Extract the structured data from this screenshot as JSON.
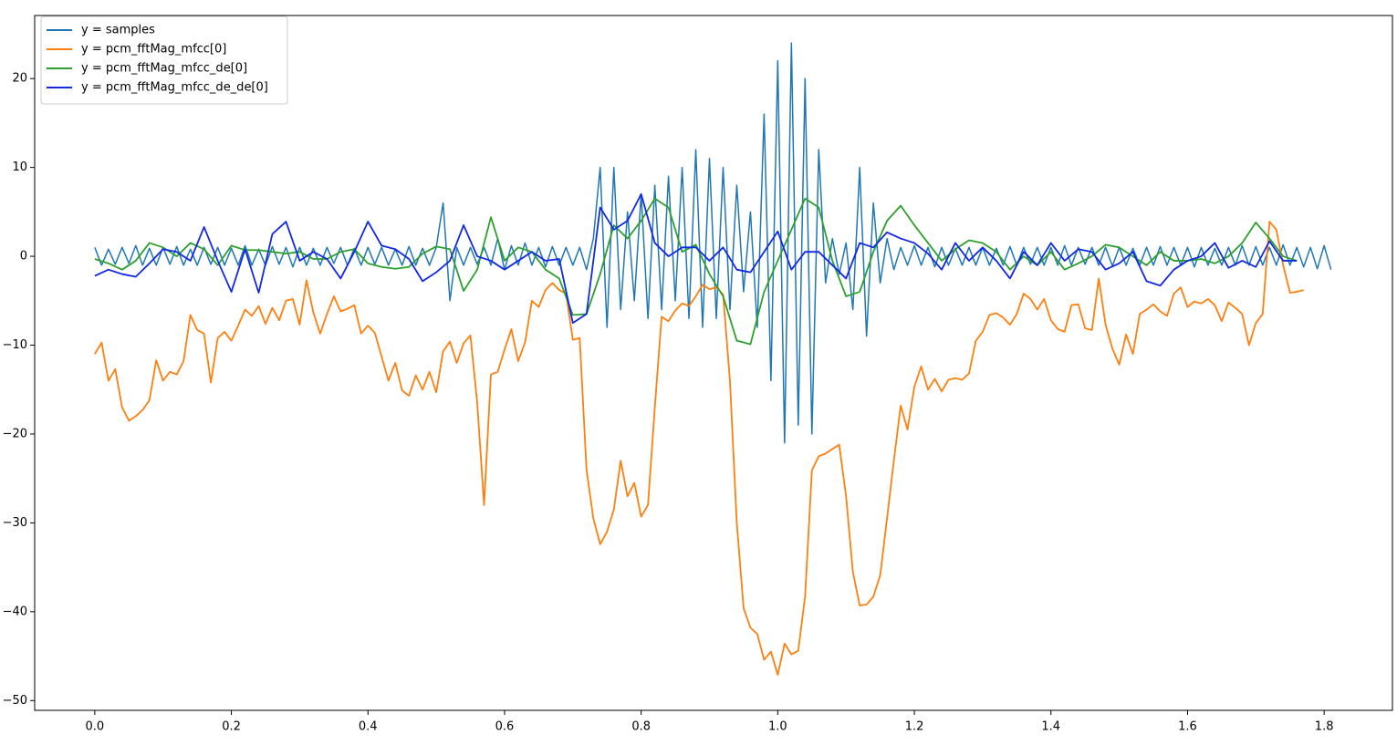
{
  "chart_data": {
    "type": "line",
    "xlim": [
      -0.088,
      1.9
    ],
    "ylim": [
      -51.1,
      27.1
    ],
    "xticks": [
      {
        "value": 0,
        "label": "0.0"
      },
      {
        "value": 0.2,
        "label": "0.2"
      },
      {
        "value": 0.4,
        "label": "0.4"
      },
      {
        "value": 0.6,
        "label": "0.6"
      },
      {
        "value": 0.8,
        "label": "0.8"
      },
      {
        "value": 1.0,
        "label": "1.0"
      },
      {
        "value": 1.2,
        "label": "1.2"
      },
      {
        "value": 1.4,
        "label": "1.4"
      },
      {
        "value": 1.6,
        "label": "1.6"
      },
      {
        "value": 1.8,
        "label": "1.8"
      }
    ],
    "yticks": [
      {
        "value": -50,
        "label": "−50"
      },
      {
        "value": -40,
        "label": "−40"
      },
      {
        "value": -30,
        "label": "−30"
      },
      {
        "value": -20,
        "label": "−20"
      },
      {
        "value": -10,
        "label": "−10"
      },
      0,
      10,
      20
    ],
    "legend": "upper left",
    "series": [
      {
        "name": "y = samples",
        "color": "#1f77b4",
        "x": [
          0,
          0.01,
          0.02,
          0.03,
          0.04,
          0.05,
          0.06,
          0.07,
          0.08,
          0.09,
          0.1,
          0.11,
          0.12,
          0.13,
          0.14,
          0.15,
          0.16,
          0.17,
          0.18,
          0.19,
          0.2,
          0.21,
          0.22,
          0.23,
          0.24,
          0.25,
          0.26,
          0.27,
          0.28,
          0.29,
          0.3,
          0.31,
          0.32,
          0.33,
          0.34,
          0.35,
          0.36,
          0.37,
          0.38,
          0.39,
          0.4,
          0.41,
          0.42,
          0.43,
          0.44,
          0.45,
          0.46,
          0.47,
          0.48,
          0.49,
          0.5,
          0.51,
          0.52,
          0.53,
          0.54,
          0.55,
          0.56,
          0.57,
          0.58,
          0.59,
          0.6,
          0.61,
          0.62,
          0.63,
          0.64,
          0.65,
          0.66,
          0.67,
          0.68,
          0.69,
          0.7,
          0.71,
          0.72,
          0.73,
          0.74,
          0.75,
          0.76,
          0.77,
          0.78,
          0.79,
          0.8,
          0.81,
          0.82,
          0.83,
          0.84,
          0.85,
          0.86,
          0.87,
          0.88,
          0.89,
          0.9,
          0.91,
          0.92,
          0.93,
          0.94,
          0.95,
          0.96,
          0.97,
          0.98,
          0.99,
          1.0,
          1.01,
          1.02,
          1.03,
          1.04,
          1.05,
          1.06,
          1.07,
          1.08,
          1.09,
          1.1,
          1.11,
          1.12,
          1.13,
          1.14,
          1.15,
          1.16,
          1.17,
          1.18,
          1.19,
          1.2,
          1.21,
          1.22,
          1.23,
          1.24,
          1.25,
          1.26,
          1.27,
          1.28,
          1.29,
          1.3,
          1.31,
          1.32,
          1.33,
          1.34,
          1.35,
          1.36,
          1.37,
          1.38,
          1.39,
          1.4,
          1.41,
          1.42,
          1.43,
          1.44,
          1.45,
          1.46,
          1.47,
          1.48,
          1.49,
          1.5,
          1.51,
          1.52,
          1.53,
          1.54,
          1.55,
          1.56,
          1.57,
          1.58,
          1.59,
          1.6,
          1.61,
          1.62,
          1.63,
          1.64,
          1.65,
          1.66,
          1.67,
          1.68,
          1.69,
          1.7,
          1.71,
          1.72,
          1.73,
          1.74,
          1.75,
          1.76,
          1.77,
          1.78,
          1.79,
          1.8,
          1.81
        ],
        "values": [
          1,
          -1,
          0.8,
          -0.9,
          1,
          -0.8,
          1.2,
          -1,
          0.9,
          -1,
          1,
          -0.9,
          1.1,
          -1,
          0.8,
          -1,
          1,
          -0.9,
          1,
          -1,
          0.9,
          -1,
          1.2,
          -1,
          0.8,
          -1,
          1.1,
          -0.9,
          1,
          -1.2,
          1,
          -1,
          0.9,
          -1,
          1,
          -0.8,
          1,
          -1,
          0.9,
          -1,
          1,
          -0.9,
          1,
          -1,
          0.8,
          -1,
          1.1,
          -1,
          0.9,
          -1,
          1,
          6,
          -5,
          1,
          -1,
          1,
          -0.9,
          1,
          -1,
          2,
          -1.5,
          1.2,
          -1,
          1.5,
          -1,
          1,
          -1.2,
          1.1,
          -1,
          1,
          -1,
          1,
          -1.5,
          2,
          10,
          -8,
          10,
          -6,
          5,
          -5,
          7,
          -7,
          8,
          -6,
          9,
          -5,
          10,
          -7,
          12,
          -8,
          11,
          -7,
          10,
          -6,
          8,
          -4,
          5,
          -8,
          16,
          -14,
          22,
          -21,
          24,
          -19,
          20,
          -20,
          12,
          -3,
          2,
          -2,
          1.5,
          -6,
          10,
          -9,
          6,
          -3,
          2,
          -1.5,
          1,
          -1,
          1.2,
          -1,
          1,
          -1.2,
          1,
          -1,
          0.9,
          -1,
          1,
          -1,
          1,
          -1,
          0.9,
          -1,
          1.1,
          -1,
          1,
          -0.9,
          1,
          -1,
          1,
          -1,
          1.2,
          -1,
          1,
          -0.9,
          1,
          -1,
          1,
          -1.1,
          1,
          -1,
          0.9,
          -1,
          1,
          -1,
          1.1,
          -1,
          1,
          -1,
          1,
          -1.2,
          1,
          -1,
          0.9,
          -1,
          1,
          -1,
          1.2,
          -1,
          1.1,
          -1,
          1,
          -1,
          1.3,
          -1,
          1,
          -1.2,
          1,
          -1.4,
          1.2,
          -1.5
        ]
      },
      {
        "name": "y = pcm_fftMag_mfcc[0]",
        "color": "#ff7f0e",
        "x": [
          0,
          0.01,
          0.02,
          0.03,
          0.04,
          0.05,
          0.06,
          0.07,
          0.08,
          0.09,
          0.1,
          0.11,
          0.12,
          0.13,
          0.14,
          0.15,
          0.16,
          0.17,
          0.18,
          0.19,
          0.2,
          0.21,
          0.22,
          0.23,
          0.24,
          0.25,
          0.26,
          0.27,
          0.28,
          0.29,
          0.3,
          0.31,
          0.32,
          0.33,
          0.34,
          0.35,
          0.36,
          0.37,
          0.38,
          0.39,
          0.4,
          0.41,
          0.42,
          0.43,
          0.44,
          0.45,
          0.46,
          0.47,
          0.48,
          0.49,
          0.5,
          0.51,
          0.52,
          0.53,
          0.54,
          0.55,
          0.56,
          0.57,
          0.58,
          0.59,
          0.6,
          0.61,
          0.62,
          0.63,
          0.64,
          0.65,
          0.66,
          0.67,
          0.68,
          0.69,
          0.7,
          0.71,
          0.72,
          0.73,
          0.74,
          0.75,
          0.76,
          0.77,
          0.78,
          0.79,
          0.8,
          0.81,
          0.82,
          0.83,
          0.84,
          0.85,
          0.86,
          0.87,
          0.88,
          0.89,
          0.9,
          0.91,
          0.92,
          0.93,
          0.94,
          0.95,
          0.96,
          0.97,
          0.98,
          0.99,
          1.0,
          1.01,
          1.02,
          1.03,
          1.04,
          1.05,
          1.06,
          1.07,
          1.08,
          1.09,
          1.1,
          1.11,
          1.12,
          1.13,
          1.14,
          1.15,
          1.16,
          1.17,
          1.18,
          1.19,
          1.2,
          1.21,
          1.22,
          1.23,
          1.24,
          1.25,
          1.26,
          1.27,
          1.28,
          1.29,
          1.3,
          1.31,
          1.32,
          1.33,
          1.34,
          1.35,
          1.36,
          1.37,
          1.38,
          1.39,
          1.4,
          1.41,
          1.42,
          1.43,
          1.44,
          1.45,
          1.46,
          1.47,
          1.48,
          1.49,
          1.5,
          1.51,
          1.52,
          1.53,
          1.54,
          1.55,
          1.56,
          1.57,
          1.58,
          1.59,
          1.6,
          1.61,
          1.62,
          1.63,
          1.64,
          1.65,
          1.66,
          1.67,
          1.68,
          1.69,
          1.7,
          1.71,
          1.72,
          1.73,
          1.74,
          1.75,
          1.76,
          1.77
        ],
        "values": [
          -11,
          -9.7,
          -14,
          -12.7,
          -17,
          -18.5,
          -18,
          -17.3,
          -16.2,
          -11.7,
          -14,
          -13,
          -13.3,
          -11.8,
          -6.6,
          -8.3,
          -8.7,
          -14.2,
          -9.2,
          -8.5,
          -9.5,
          -7.8,
          -6,
          -6.7,
          -5.6,
          -7.6,
          -5.8,
          -7.2,
          -5,
          -4.8,
          -7.7,
          -2.7,
          -6.3,
          -8.7,
          -6.5,
          -4.5,
          -6.2,
          -5.9,
          -5.5,
          -8.7,
          -7.8,
          -8.6,
          -11.3,
          -14,
          -12,
          -15.1,
          -15.7,
          -13.4,
          -15,
          -13,
          -15.3,
          -10.7,
          -9.6,
          -12,
          -9.8,
          -8.9,
          -16.5,
          -28,
          -13.3,
          -13,
          -10.5,
          -8.2,
          -11.8,
          -9.7,
          -5,
          -5.7,
          -3.8,
          -3,
          -3.8,
          -4.2,
          -9.4,
          -9.2,
          -24,
          -29.5,
          -32.4,
          -31,
          -28.5,
          -23,
          -27,
          -25.5,
          -29.3,
          -28,
          -17,
          -6.8,
          -7.3,
          -6.1,
          -5.3,
          -5.6,
          -4.5,
          -3.2,
          -3.7,
          -3.5,
          -4.3,
          -14,
          -30,
          -39.6,
          -41.8,
          -42.5,
          -45.4,
          -44.5,
          -47.1,
          -43.6,
          -44.8,
          -44.4,
          -38.3,
          -24.1,
          -22.5,
          -22.2,
          -21.7,
          -21.2,
          -27,
          -35.5,
          -39.3,
          -39.2,
          -38.3,
          -35.9,
          -29.5,
          -23,
          -16.8,
          -19.5,
          -14.7,
          -12.4,
          -15,
          -13.8,
          -15.2,
          -13.9,
          -13.7,
          -13.9,
          -13.2,
          -9.5,
          -8.5,
          -6.6,
          -6.4,
          -6.9,
          -7.7,
          -6.5,
          -4.2,
          -4.8,
          -6,
          -4.8,
          -7.2,
          -8.2,
          -8.5,
          -5.5,
          -5.4,
          -8.1,
          -8.3,
          -2.5,
          -7.7,
          -10.4,
          -12.2,
          -8.8,
          -11,
          -6.5,
          -6,
          -5.4,
          -6.2,
          -6.7,
          -4.2,
          -3.5,
          -5.7,
          -5.1,
          -5.3,
          -4.8,
          -5.5,
          -7.3,
          -5.2,
          -5.8,
          -6.5,
          -10,
          -7.5,
          -6.5,
          3.9,
          3,
          -1,
          -4.1,
          -4,
          -3.8
        ]
      },
      {
        "name": "y = pcm_fftMag_mfcc_de[0]",
        "color": "#2ca02c",
        "x": [
          0,
          0.02,
          0.04,
          0.06,
          0.08,
          0.1,
          0.12,
          0.14,
          0.16,
          0.18,
          0.2,
          0.22,
          0.24,
          0.26,
          0.28,
          0.3,
          0.32,
          0.34,
          0.36,
          0.38,
          0.4,
          0.42,
          0.44,
          0.46,
          0.48,
          0.5,
          0.52,
          0.54,
          0.56,
          0.58,
          0.6,
          0.62,
          0.64,
          0.66,
          0.68,
          0.7,
          0.72,
          0.74,
          0.76,
          0.78,
          0.8,
          0.82,
          0.84,
          0.86,
          0.88,
          0.9,
          0.92,
          0.94,
          0.96,
          0.98,
          1.0,
          1.02,
          1.04,
          1.06,
          1.08,
          1.1,
          1.12,
          1.14,
          1.16,
          1.18,
          1.2,
          1.22,
          1.24,
          1.26,
          1.28,
          1.3,
          1.32,
          1.34,
          1.36,
          1.38,
          1.4,
          1.42,
          1.44,
          1.46,
          1.48,
          1.5,
          1.52,
          1.54,
          1.56,
          1.58,
          1.6,
          1.62,
          1.64,
          1.66,
          1.68,
          1.7,
          1.72,
          1.74,
          1.76
        ],
        "values": [
          -0.3,
          -0.8,
          -1.5,
          -0.5,
          1.5,
          1,
          0,
          1.5,
          0.8,
          -1,
          1.2,
          0.7,
          0.7,
          0.5,
          0.3,
          0.5,
          -0.3,
          -0.3,
          0.5,
          0.8,
          -0.8,
          -1.2,
          -1.4,
          -1.2,
          0.3,
          1.1,
          0.8,
          -3.9,
          -1.5,
          4.4,
          -0.5,
          1,
          0.5,
          -1.5,
          -2.5,
          -6.6,
          -6.5,
          -2,
          3.5,
          2,
          4,
          6.5,
          5.5,
          0.5,
          1.3,
          -2,
          -4.5,
          -9.5,
          -9.9,
          -4,
          -0.5,
          3,
          6.5,
          5.5,
          -0.5,
          -4.5,
          -4,
          0.5,
          4,
          5.7,
          3.5,
          1.5,
          -0.5,
          0.8,
          1.8,
          1.5,
          0.5,
          -1.5,
          0,
          -1,
          0.5,
          -1.5,
          -0.8,
          0,
          1.3,
          1,
          0,
          -1,
          0.5,
          -0.5,
          -0.5,
          -0.3,
          -0.8,
          0,
          1.5,
          3.8,
          2,
          0,
          -0.5
        ]
      },
      {
        "name": "y = pcm_fftMag_mfcc_de_de[0]",
        "color": "#1228e8",
        "x": [
          0,
          0.02,
          0.04,
          0.06,
          0.08,
          0.1,
          0.12,
          0.14,
          0.16,
          0.18,
          0.2,
          0.22,
          0.24,
          0.26,
          0.28,
          0.3,
          0.32,
          0.34,
          0.36,
          0.38,
          0.4,
          0.42,
          0.44,
          0.46,
          0.48,
          0.5,
          0.52,
          0.54,
          0.56,
          0.58,
          0.6,
          0.62,
          0.64,
          0.66,
          0.68,
          0.7,
          0.72,
          0.74,
          0.76,
          0.78,
          0.8,
          0.82,
          0.84,
          0.86,
          0.88,
          0.9,
          0.92,
          0.94,
          0.96,
          0.98,
          1.0,
          1.02,
          1.04,
          1.06,
          1.08,
          1.1,
          1.12,
          1.14,
          1.16,
          1.18,
          1.2,
          1.22,
          1.24,
          1.26,
          1.28,
          1.3,
          1.32,
          1.34,
          1.36,
          1.38,
          1.4,
          1.42,
          1.44,
          1.46,
          1.48,
          1.5,
          1.52,
          1.54,
          1.56,
          1.58,
          1.6,
          1.62,
          1.64,
          1.66,
          1.68,
          1.7,
          1.72,
          1.74,
          1.76
        ],
        "values": [
          -2.2,
          -1.5,
          -2,
          -2.3,
          -0.8,
          0.8,
          0.5,
          -0.5,
          3.3,
          -0.5,
          -4,
          0.8,
          -4.1,
          2.5,
          3.9,
          -0.5,
          0.5,
          -0.3,
          -2.5,
          0.5,
          3.9,
          1.2,
          0.8,
          -0.3,
          -2.8,
          -1.8,
          -0.5,
          3.5,
          0,
          -0.5,
          -1.5,
          -0.5,
          0.5,
          -0.5,
          -0.3,
          -7.5,
          -6.5,
          5.5,
          3,
          4,
          7,
          1.5,
          0,
          1,
          1,
          -0.5,
          1,
          -1.5,
          -1.8,
          0.5,
          2.8,
          -1.5,
          0.5,
          0.5,
          -1,
          -2.5,
          1.5,
          1,
          2.7,
          2,
          1.5,
          0.3,
          -1.5,
          1.5,
          -0.5,
          1,
          -0.5,
          -2.5,
          0.5,
          -1,
          1.5,
          -0.5,
          0.8,
          0.5,
          -1.5,
          -0.8,
          0.5,
          -2.8,
          -3.3,
          -1.5,
          -0.5,
          0,
          1.5,
          -1.3,
          -0.5,
          -1.2,
          1.7,
          -0.5,
          -0.5
        ]
      }
    ]
  }
}
